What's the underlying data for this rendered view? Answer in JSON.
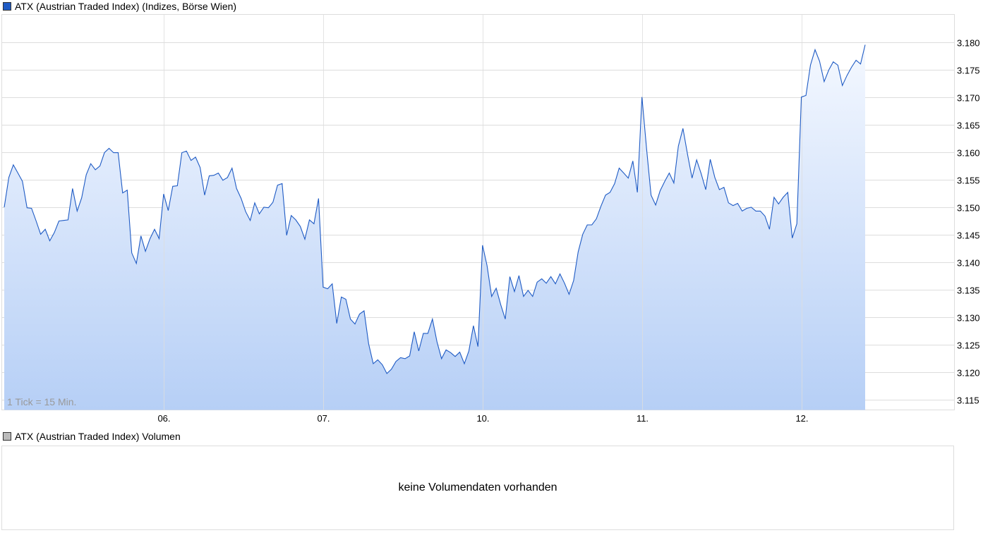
{
  "legend": {
    "main": "ATX (Austrian Traded Index) (Indizes, Börse Wien)",
    "volume": "ATX (Austrian Traded Index) Volumen"
  },
  "colors": {
    "line": "#1f5bc4",
    "fill_top": "#f4f8ff",
    "fill_bottom": "#b6cff6",
    "grid": "#dddddd",
    "main_swatch": "#1f5bc4",
    "volume_swatch": "#bbbbbb"
  },
  "volume_panel": {
    "message": "keine Volumendaten vorhanden"
  },
  "chart_data": {
    "type": "area",
    "tick_note": "1 Tick = 15 Min.",
    "ylim": [
      3.1132,
      3.185
    ],
    "y_ticks": [
      3.115,
      3.12,
      3.125,
      3.13,
      3.135,
      3.14,
      3.145,
      3.15,
      3.155,
      3.16,
      3.165,
      3.17,
      3.175,
      3.18
    ],
    "y_tick_labels": [
      "3.115",
      "3.120",
      "3.125",
      "3.130",
      "3.135",
      "3.140",
      "3.145",
      "3.150",
      "3.155",
      "3.160",
      "3.165",
      "3.170",
      "3.175",
      "3.180"
    ],
    "x_ticks": [
      {
        "index": 35,
        "label": "06."
      },
      {
        "index": 70,
        "label": "07."
      },
      {
        "index": 105,
        "label": "10."
      },
      {
        "index": 140,
        "label": "11."
      },
      {
        "index": 175,
        "label": "12."
      }
    ],
    "grid": true,
    "values": [
      3.15,
      3.1554,
      3.1577,
      3.1562,
      3.1547,
      3.1499,
      3.1498,
      3.1475,
      3.1451,
      3.146,
      3.1439,
      3.1454,
      3.1475,
      3.1476,
      3.1477,
      3.1534,
      3.1493,
      3.1517,
      3.1559,
      3.1579,
      3.1568,
      3.1575,
      3.1599,
      3.1607,
      3.1599,
      3.1599,
      3.1526,
      3.1531,
      3.1417,
      3.1398,
      3.1448,
      3.142,
      3.1443,
      3.146,
      3.1443,
      3.1524,
      3.1494,
      3.1538,
      3.1539,
      3.1599,
      3.1602,
      3.1585,
      3.1591,
      3.1572,
      3.1522,
      3.1557,
      3.1558,
      3.1562,
      3.1549,
      3.1554,
      3.1571,
      3.1534,
      3.1516,
      3.1492,
      3.1476,
      3.1508,
      3.1488,
      3.15,
      3.1499,
      3.1509,
      3.154,
      3.1543,
      3.1449,
      3.1485,
      3.1477,
      3.1465,
      3.1442,
      3.1477,
      3.147,
      3.1516,
      3.1355,
      3.1352,
      3.1361,
      3.1289,
      3.1337,
      3.1333,
      3.1297,
      3.1288,
      3.1306,
      3.1312,
      3.1252,
      3.1216,
      3.1223,
      3.1214,
      3.1198,
      3.1206,
      3.122,
      3.1227,
      3.1225,
      3.123,
      3.1274,
      3.1239,
      3.1271,
      3.1271,
      3.1297,
      3.1256,
      3.1225,
      3.1241,
      3.1236,
      3.1229,
      3.1237,
      3.1216,
      3.1239,
      3.1285,
      3.1247,
      3.1431,
      3.1394,
      3.1338,
      3.1353,
      3.1323,
      3.1297,
      3.1374,
      3.1347,
      3.1376,
      3.1338,
      3.1349,
      3.1338,
      3.1364,
      3.137,
      3.1362,
      3.1374,
      3.1361,
      3.1379,
      3.1362,
      3.1342,
      3.1367,
      3.1419,
      3.1451,
      3.1468,
      3.1468,
      3.1479,
      3.1502,
      3.1522,
      3.1527,
      3.1543,
      3.1571,
      3.1562,
      3.1553,
      3.1584,
      3.1527,
      3.17,
      3.1607,
      3.1522,
      3.1504,
      3.153,
      3.1547,
      3.1562,
      3.1544,
      3.1611,
      3.1643,
      3.1596,
      3.1553,
      3.1586,
      3.1561,
      3.1532,
      3.1587,
      3.1554,
      3.1532,
      3.1536,
      3.1508,
      3.1503,
      3.1507,
      3.1493,
      3.1498,
      3.15,
      3.1493,
      3.1493,
      3.1484,
      3.146,
      3.1518,
      3.1506,
      3.1518,
      3.1527,
      3.1444,
      3.147,
      3.17,
      3.1703,
      3.1758,
      3.1786,
      3.1765,
      3.1728,
      3.1749,
      3.1764,
      3.1758,
      3.1721,
      3.1739,
      3.1754,
      3.1767,
      3.176,
      3.1795
    ]
  }
}
